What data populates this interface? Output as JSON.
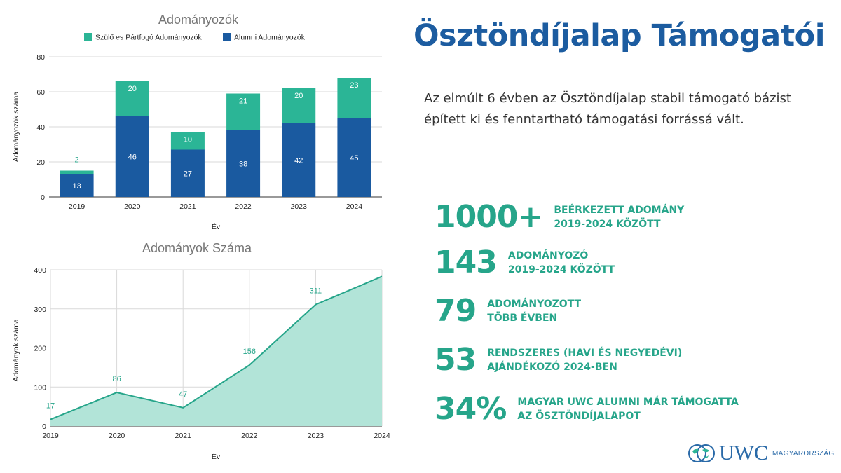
{
  "colors": {
    "alumni": "#1a5aa0",
    "szulo": "#2bb596",
    "area_fill": "#b2e4d8",
    "area_line": "#26a58a",
    "grid": "#d9d9d9",
    "title_blue": "#1c5ca0",
    "stat_green": "#26a58a"
  },
  "chart_data": [
    {
      "type": "bar",
      "stacked": true,
      "title": "Adományozók",
      "xlabel": "Év",
      "ylabel": "Adományozók száma",
      "categories": [
        "2019",
        "2020",
        "2021",
        "2022",
        "2023",
        "2024"
      ],
      "series": [
        {
          "name": "Alumni Adományozók",
          "values": [
            13,
            46,
            27,
            38,
            42,
            45
          ]
        },
        {
          "name": "Szülő es Pártfogó Adományozók",
          "values": [
            2,
            20,
            10,
            21,
            20,
            23
          ]
        }
      ],
      "legend_order": [
        "Szülő es Pártfogó Adományozók",
        "Alumni Adományozók"
      ],
      "legend_position": "top",
      "ylim": [
        0,
        80
      ],
      "yticks": [
        0,
        20,
        40,
        60,
        80
      ],
      "grid": true
    },
    {
      "type": "area",
      "title": "Adományok Száma",
      "xlabel": "Év",
      "ylabel": "Adományok száma",
      "x": [
        "2019",
        "2020",
        "2021",
        "2022",
        "2023",
        "2024"
      ],
      "values": [
        17,
        86,
        47,
        156,
        311,
        383
      ],
      "labels": [
        "17",
        "86",
        "47",
        "156",
        "311",
        ""
      ],
      "ylim": [
        0,
        400
      ],
      "yticks": [
        0,
        100,
        200,
        300,
        400
      ],
      "grid": true
    }
  ],
  "header": {
    "title": "Ösztöndíjalap Támogatói",
    "intro": "Az elmúlt 6 évben az Ösztöndíjalap stabil támogató bázist épített ki és fenntartható támogatási forrássá vált."
  },
  "stats": [
    {
      "value": "1000+",
      "line1": "BEÉRKEZETT ADOMÁNY",
      "line2": "2019-2024 KÖZÖTT"
    },
    {
      "value": "143",
      "line1": "ADOMÁNYOZÓ",
      "line2": "2019-2024 KÖZÖTT"
    },
    {
      "value": "79",
      "line1": "ADOMÁNYOZOTT",
      "line2": "TÖBB ÉVBEN"
    },
    {
      "value": "53",
      "line1": "RENDSZERES (HAVI ÉS NEGYEDÉVI)",
      "line2": "AJÁNDÉKOZÓ 2024-BEN"
    },
    {
      "value": "34%",
      "line1": "MAGYAR UWC ALUMNI MÁR TÁMOGATTA",
      "line2": "AZ ÖSZTÖNDÍJALAPOT"
    }
  ],
  "logo": {
    "word": "UWC",
    "sub": "MAGYARORSZÁG"
  }
}
